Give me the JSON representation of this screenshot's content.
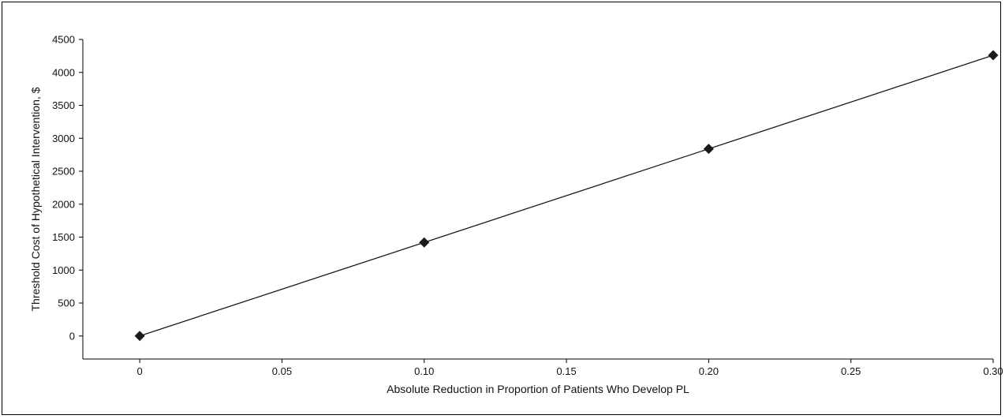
{
  "chart_data": {
    "type": "line",
    "title": "",
    "xlabel": "Absolute Reduction in Proportion of Patients Who Develop PL",
    "ylabel": "Threshold Cost of Hypothetical Intervention, $",
    "xlim": [
      -0.02,
      0.3
    ],
    "ylim": [
      -350,
      4500
    ],
    "x_ticks": [
      0,
      0.05,
      0.1,
      0.15,
      0.2,
      0.25,
      0.3
    ],
    "x_tick_labels": [
      "0",
      "0.05",
      "0.10",
      "0.15",
      "0.20",
      "0.25",
      "0.30"
    ],
    "y_ticks": [
      0,
      500,
      1000,
      1500,
      2000,
      2500,
      3000,
      3500,
      4000,
      4500
    ],
    "y_tick_labels": [
      "0",
      "500",
      "1000",
      "1500",
      "2000",
      "2500",
      "3000",
      "3500",
      "4000",
      "4500"
    ],
    "grid": false,
    "series": [
      {
        "x": [
          0,
          0.1,
          0.2,
          0.3
        ],
        "y": [
          0,
          1420,
          2840,
          4260
        ],
        "marker": "diamond",
        "color": "#1a1a1a"
      }
    ]
  }
}
